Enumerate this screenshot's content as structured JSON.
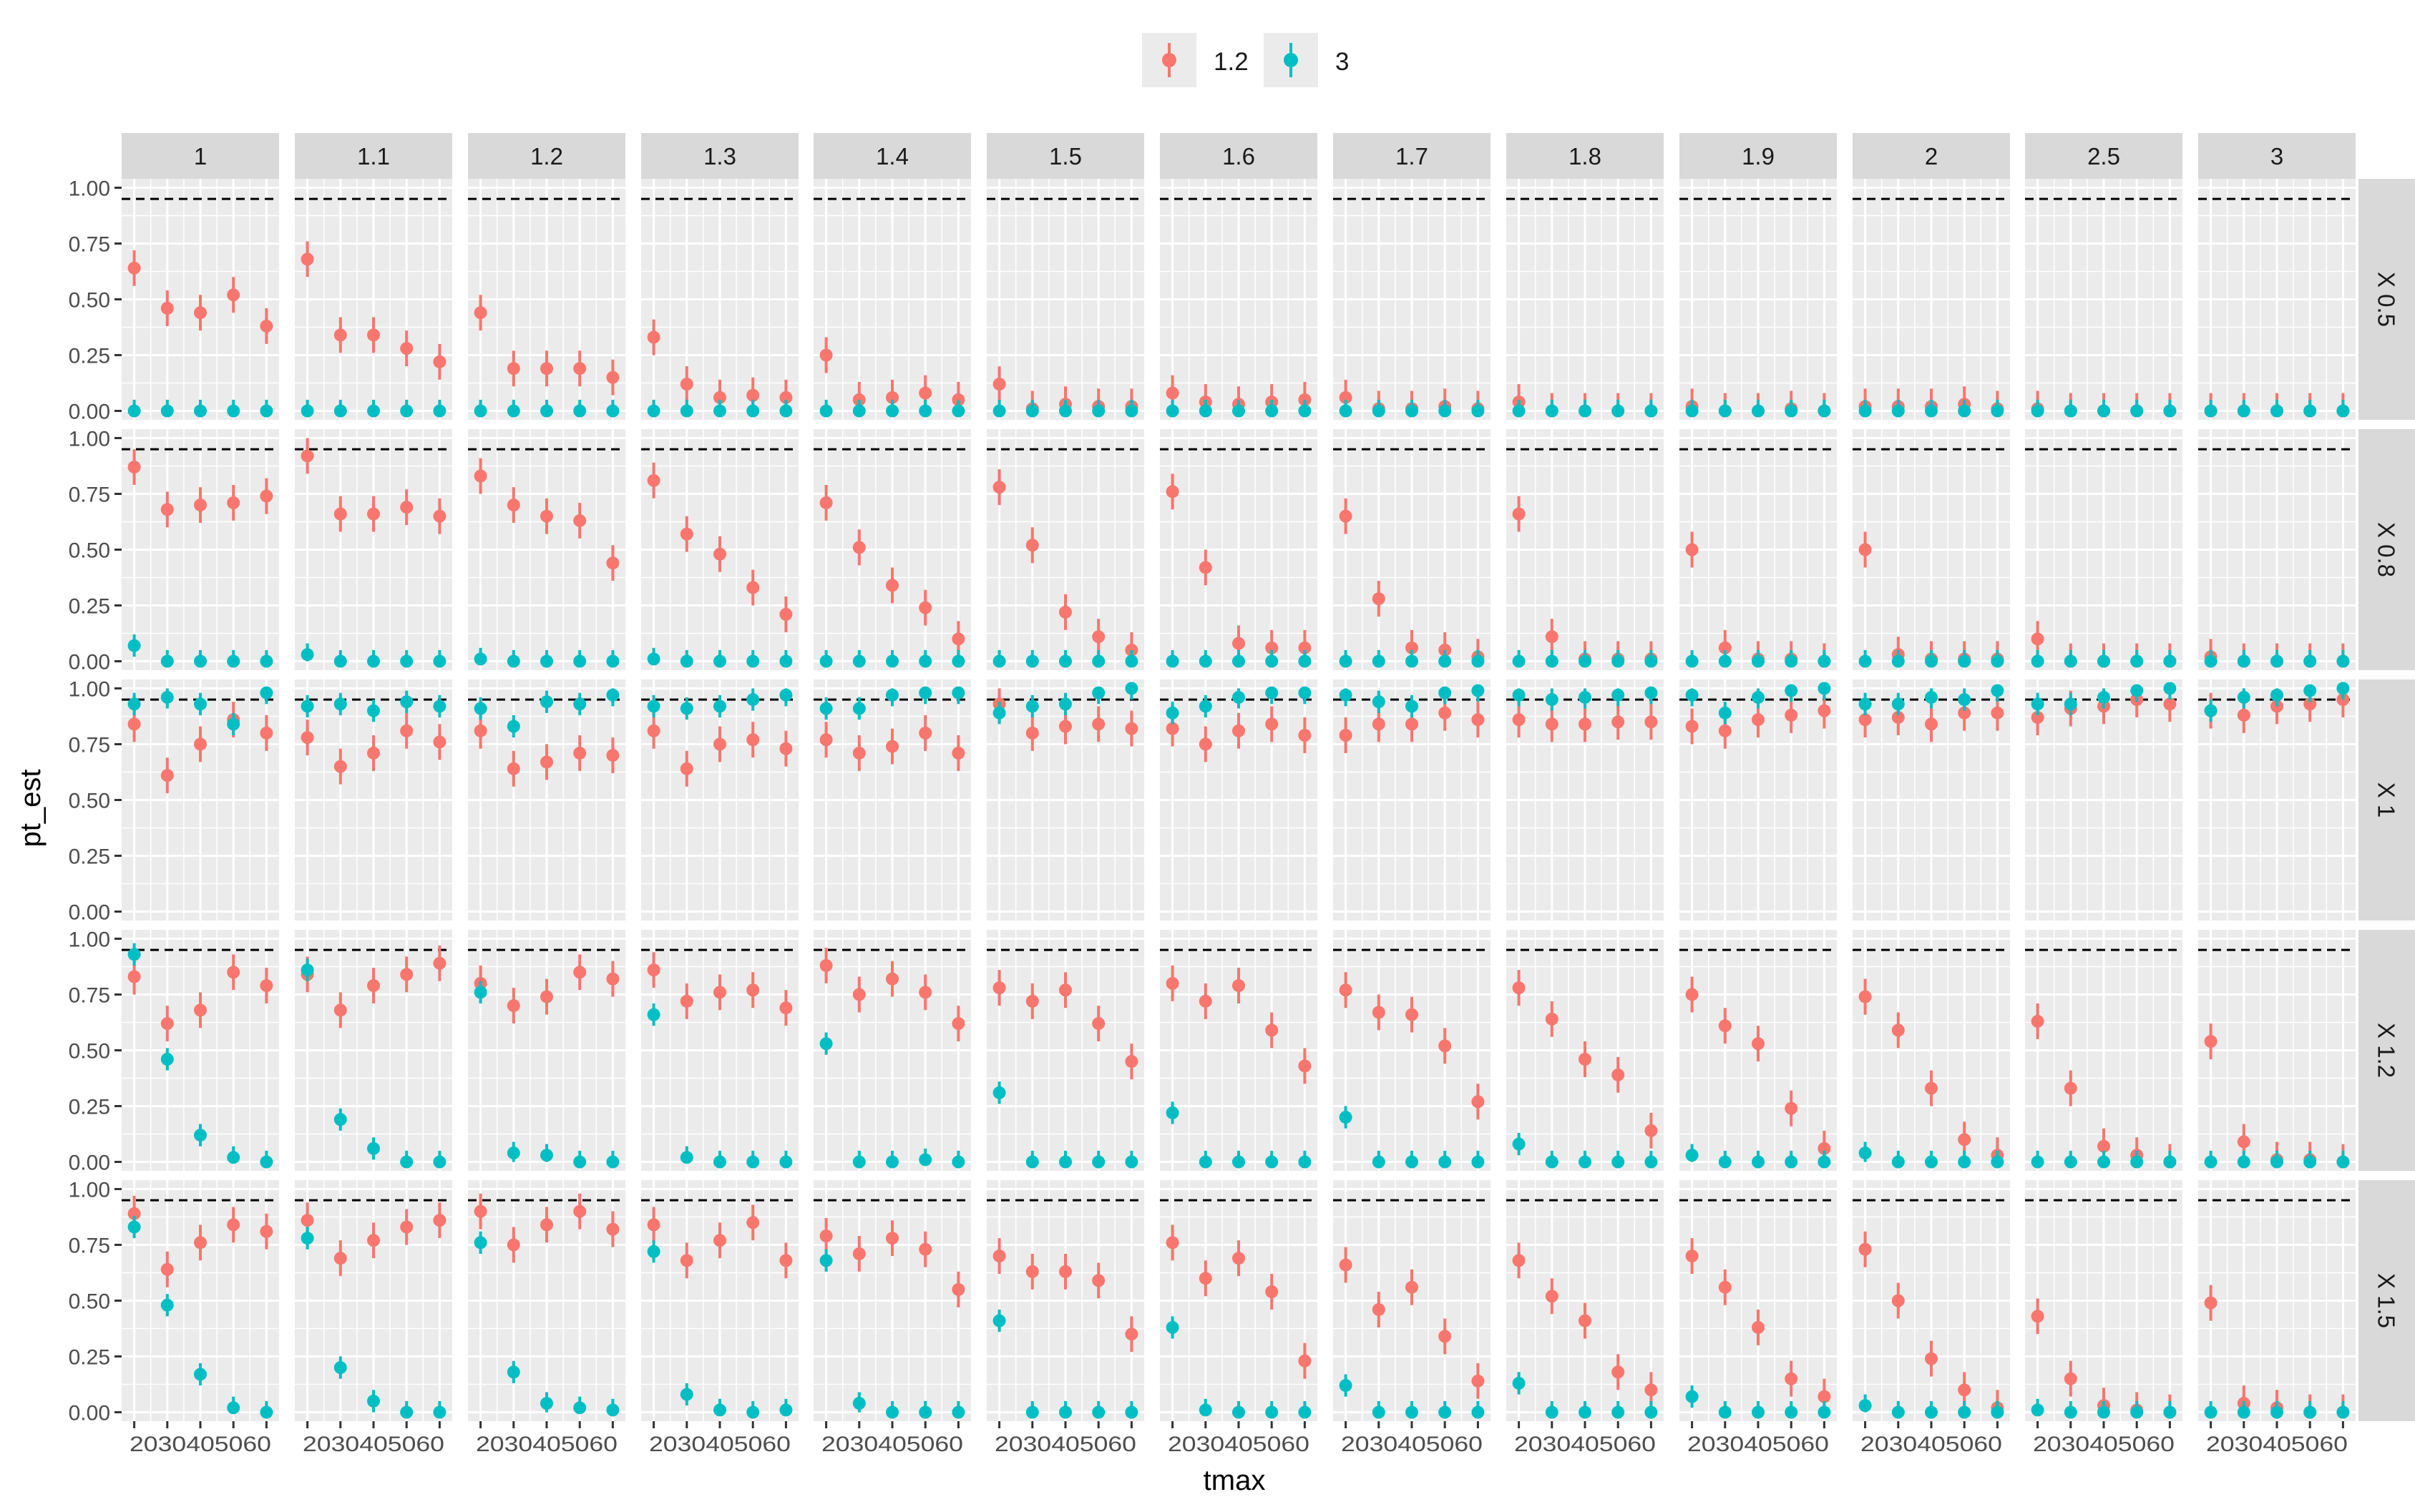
{
  "chart_data": {
    "type": "scatter",
    "title": "",
    "xlabel": "tmax",
    "ylabel": "pt_est",
    "x": [
      20,
      30,
      40,
      50,
      60
    ],
    "x_tick_text": "2030405060",
    "y_ticks": [
      "0.00",
      "0.25",
      "0.50",
      "0.75",
      "1.00"
    ],
    "ylim": [
      -0.04,
      1.04
    ],
    "reference_line": 0.95,
    "legend": {
      "position": "top",
      "entries": [
        "1.2",
        "3"
      ]
    },
    "colors": {
      "1.2": "#F8766D",
      "3": "#00BFC4",
      "panel_bg": "#EBEBEB",
      "strip_bg": "#D9D9D9",
      "refline": "#000000"
    },
    "columns": [
      "1",
      "1.1",
      "1.2",
      "1.3",
      "1.4",
      "1.5",
      "1.6",
      "1.7",
      "1.8",
      "1.9",
      "2",
      "2.5",
      "3"
    ],
    "rows": [
      "X 0.5",
      "X 0.8",
      "X 1",
      "X 1.2",
      "X 1.5"
    ],
    "errorbar_halfwidth": {
      "1.2": 0.08,
      "3": 0.05
    },
    "series": [
      {
        "name": "1.2",
        "values": [
          [
            [
              0.64,
              0.46,
              0.44,
              0.52,
              0.38
            ],
            [
              0.68,
              0.34,
              0.34,
              0.28,
              0.22
            ],
            [
              0.44,
              0.19,
              0.19,
              0.19,
              0.15
            ],
            [
              0.33,
              0.12,
              0.06,
              0.07,
              0.06
            ],
            [
              0.25,
              0.05,
              0.06,
              0.08,
              0.05
            ],
            [
              0.12,
              0.01,
              0.03,
              0.02,
              0.02
            ],
            [
              0.08,
              0.04,
              0.03,
              0.04,
              0.05
            ],
            [
              0.06,
              0.01,
              0.01,
              0.02,
              0.01
            ],
            [
              0.04,
              0.0,
              0.0,
              0.0,
              0.0
            ],
            [
              0.02,
              0.0,
              0.0,
              0.01,
              0.0
            ],
            [
              0.02,
              0.02,
              0.02,
              0.03,
              0.01
            ],
            [
              0.01,
              0.0,
              0.0,
              0.0,
              0.0
            ],
            [
              0.0,
              0.0,
              0.0,
              0.0,
              0.0
            ]
          ],
          [
            [
              0.87,
              0.68,
              0.7,
              0.71,
              0.74
            ],
            [
              0.92,
              0.66,
              0.66,
              0.69,
              0.65
            ],
            [
              0.83,
              0.7,
              0.65,
              0.63,
              0.44
            ],
            [
              0.81,
              0.57,
              0.48,
              0.33,
              0.21
            ],
            [
              0.71,
              0.51,
              0.34,
              0.24,
              0.1
            ],
            [
              0.78,
              0.52,
              0.22,
              0.11,
              0.05
            ],
            [
              0.76,
              0.42,
              0.08,
              0.06,
              0.06
            ],
            [
              0.65,
              0.28,
              0.06,
              0.05,
              0.02
            ],
            [
              0.66,
              0.11,
              0.01,
              0.01,
              0.01
            ],
            [
              0.5,
              0.06,
              0.01,
              0.01,
              0.0
            ],
            [
              0.5,
              0.03,
              0.01,
              0.01,
              0.01
            ],
            [
              0.1,
              0.0,
              0.0,
              0.0,
              0.0
            ],
            [
              0.02,
              0.0,
              0.0,
              0.0,
              0.0
            ]
          ],
          [
            [
              0.84,
              0.61,
              0.75,
              0.86,
              0.8
            ],
            [
              0.78,
              0.65,
              0.71,
              0.81,
              0.76
            ],
            [
              0.81,
              0.64,
              0.67,
              0.71,
              0.7
            ],
            [
              0.81,
              0.64,
              0.75,
              0.77,
              0.73
            ],
            [
              0.77,
              0.71,
              0.74,
              0.8,
              0.71
            ],
            [
              0.93,
              0.8,
              0.83,
              0.84,
              0.82
            ],
            [
              0.82,
              0.75,
              0.81,
              0.84,
              0.79
            ],
            [
              0.79,
              0.84,
              0.84,
              0.89,
              0.86
            ],
            [
              0.86,
              0.84,
              0.84,
              0.85,
              0.85
            ],
            [
              0.83,
              0.81,
              0.86,
              0.88,
              0.9
            ],
            [
              0.86,
              0.87,
              0.84,
              0.89,
              0.89
            ],
            [
              0.87,
              0.91,
              0.92,
              0.95,
              0.93
            ],
            [
              0.9,
              0.88,
              0.92,
              0.93,
              0.95
            ]
          ],
          [
            [
              0.83,
              0.62,
              0.68,
              0.85,
              0.79
            ],
            [
              0.84,
              0.68,
              0.79,
              0.84,
              0.89
            ],
            [
              0.8,
              0.7,
              0.74,
              0.85,
              0.82
            ],
            [
              0.86,
              0.72,
              0.76,
              0.77,
              0.69
            ],
            [
              0.88,
              0.75,
              0.82,
              0.76,
              0.62
            ],
            [
              0.78,
              0.72,
              0.77,
              0.62,
              0.45
            ],
            [
              0.8,
              0.72,
              0.79,
              0.59,
              0.43
            ],
            [
              0.77,
              0.67,
              0.66,
              0.52,
              0.27
            ],
            [
              0.78,
              0.64,
              0.46,
              0.39,
              0.14
            ],
            [
              0.75,
              0.61,
              0.53,
              0.24,
              0.06
            ],
            [
              0.74,
              0.59,
              0.33,
              0.1,
              0.03
            ],
            [
              0.63,
              0.33,
              0.07,
              0.03,
              0.0
            ],
            [
              0.54,
              0.09,
              0.01,
              0.01,
              0.0
            ]
          ],
          [
            [
              0.89,
              0.64,
              0.76,
              0.84,
              0.81
            ],
            [
              0.86,
              0.69,
              0.77,
              0.83,
              0.86
            ],
            [
              0.9,
              0.75,
              0.84,
              0.9,
              0.82
            ],
            [
              0.84,
              0.68,
              0.77,
              0.85,
              0.68
            ],
            [
              0.79,
              0.71,
              0.78,
              0.73,
              0.55
            ],
            [
              0.7,
              0.63,
              0.63,
              0.59,
              0.35
            ],
            [
              0.76,
              0.6,
              0.69,
              0.54,
              0.23
            ],
            [
              0.66,
              0.46,
              0.56,
              0.34,
              0.14
            ],
            [
              0.68,
              0.52,
              0.41,
              0.18,
              0.1
            ],
            [
              0.7,
              0.56,
              0.38,
              0.15,
              0.07
            ],
            [
              0.73,
              0.5,
              0.24,
              0.1,
              0.02
            ],
            [
              0.43,
              0.15,
              0.03,
              0.01,
              0.0
            ],
            [
              0.49,
              0.04,
              0.02,
              0.0,
              0.0
            ]
          ]
        ]
      },
      {
        "name": "3",
        "values": [
          [
            [
              0,
              0,
              0,
              0,
              0
            ],
            [
              0,
              0,
              0,
              0,
              0
            ],
            [
              0,
              0,
              0,
              0,
              0
            ],
            [
              0,
              0,
              0,
              0,
              0
            ],
            [
              0,
              0,
              0,
              0,
              0
            ],
            [
              0,
              0,
              0,
              0,
              0
            ],
            [
              0,
              0,
              0,
              0,
              0
            ],
            [
              0,
              0,
              0,
              0,
              0
            ],
            [
              0,
              0,
              0,
              0,
              0
            ],
            [
              0,
              0,
              0,
              0,
              0
            ],
            [
              0,
              0,
              0,
              0,
              0
            ],
            [
              0,
              0,
              0,
              0,
              0
            ],
            [
              0,
              0,
              0,
              0,
              0
            ]
          ],
          [
            [
              0.07,
              0,
              0,
              0,
              0
            ],
            [
              0.03,
              0,
              0,
              0,
              0
            ],
            [
              0.01,
              0,
              0,
              0,
              0
            ],
            [
              0.01,
              0,
              0,
              0,
              0
            ],
            [
              0,
              0,
              0,
              0,
              0
            ],
            [
              0,
              0,
              0,
              0,
              0
            ],
            [
              0,
              0,
              0,
              0,
              0
            ],
            [
              0,
              0,
              0,
              0,
              0
            ],
            [
              0,
              0,
              0,
              0,
              0
            ],
            [
              0,
              0,
              0,
              0,
              0
            ],
            [
              0,
              0,
              0,
              0,
              0
            ],
            [
              0,
              0,
              0,
              0,
              0
            ],
            [
              0,
              0,
              0,
              0,
              0
            ]
          ],
          [
            [
              0.93,
              0.96,
              0.93,
              0.84,
              0.98
            ],
            [
              0.92,
              0.93,
              0.9,
              0.94,
              0.92
            ],
            [
              0.91,
              0.83,
              0.94,
              0.93,
              0.97
            ],
            [
              0.92,
              0.91,
              0.92,
              0.95,
              0.97
            ],
            [
              0.91,
              0.91,
              0.97,
              0.98,
              0.98
            ],
            [
              0.89,
              0.92,
              0.93,
              0.98,
              1.0
            ],
            [
              0.89,
              0.92,
              0.96,
              0.98,
              0.98
            ],
            [
              0.97,
              0.94,
              0.92,
              0.98,
              0.99
            ],
            [
              0.97,
              0.95,
              0.96,
              0.97,
              0.98
            ],
            [
              0.97,
              0.89,
              0.96,
              0.99,
              1.0
            ],
            [
              0.93,
              0.93,
              0.96,
              0.95,
              0.99
            ],
            [
              0.93,
              0.93,
              0.96,
              0.99,
              1.0
            ],
            [
              0.9,
              0.96,
              0.97,
              0.99,
              1.0
            ]
          ],
          [
            [
              0.93,
              0.46,
              0.12,
              0.02,
              0.0
            ],
            [
              0.86,
              0.19,
              0.06,
              0.0,
              0.0
            ],
            [
              0.76,
              0.04,
              0.03,
              0.0,
              0.0
            ],
            [
              0.66,
              0.02,
              0.0,
              0.0,
              0.0
            ],
            [
              0.53,
              0.0,
              0.0,
              0.01,
              0.0
            ],
            [
              0.31,
              0.0,
              0.0,
              0.0,
              0.0
            ],
            [
              0.22,
              0.0,
              0.0,
              0.0,
              0.0
            ],
            [
              0.2,
              0.0,
              0.0,
              0.0,
              0.0
            ],
            [
              0.08,
              0.0,
              0.0,
              0.0,
              0.0
            ],
            [
              0.03,
              0.0,
              0.0,
              0.0,
              0.0
            ],
            [
              0.04,
              0.0,
              0.0,
              0.0,
              0.0
            ],
            [
              0.0,
              0.0,
              0.0,
              0.0,
              0.0
            ],
            [
              0.0,
              0.0,
              0.0,
              0.0,
              0.0
            ]
          ],
          [
            [
              0.83,
              0.48,
              0.17,
              0.02,
              0.0
            ],
            [
              0.78,
              0.2,
              0.05,
              0.0,
              0.0
            ],
            [
              0.76,
              0.18,
              0.04,
              0.02,
              0.01
            ],
            [
              0.72,
              0.08,
              0.01,
              0.0,
              0.01
            ],
            [
              0.68,
              0.04,
              0.0,
              0.0,
              0.0
            ],
            [
              0.41,
              0.0,
              0.0,
              0.0,
              0.0
            ],
            [
              0.38,
              0.01,
              0.0,
              0.0,
              0.0
            ],
            [
              0.12,
              0.0,
              0.0,
              0.0,
              0.0
            ],
            [
              0.13,
              0.0,
              0.0,
              0.0,
              0.0
            ],
            [
              0.07,
              0.0,
              0.0,
              0.0,
              0.0
            ],
            [
              0.03,
              0.0,
              0.0,
              0.0,
              0.0
            ],
            [
              0.01,
              0.0,
              0.0,
              0.0,
              0.0
            ],
            [
              0.0,
              0.0,
              0.0,
              0.0,
              0.0
            ]
          ]
        ]
      }
    ]
  }
}
